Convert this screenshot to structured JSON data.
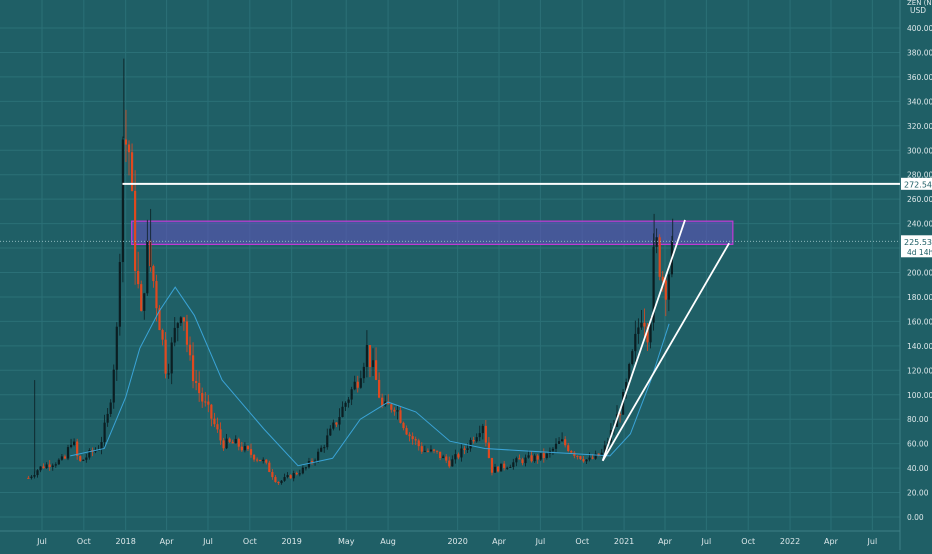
{
  "colors": {
    "background": "#1f5f66",
    "grid": "#2b7077",
    "up_candle": "#0b1e22",
    "down_candle": "#e0491f",
    "ma_line": "#3aa3d6",
    "level_line": "#ffffff",
    "zone_fill": "#5b54b4",
    "zone_border": "#c23ad6",
    "axis_text": "#dde8ea",
    "price_tag_bg": "#ffffff",
    "price_tag_text": "#1f5f66"
  },
  "axis": {
    "currency_top": "ZEN (N)",
    "currency": "USD",
    "price_tag": "225.53",
    "countdown_tag": "4d 14h",
    "level_tag": "272.54"
  },
  "chart_data": {
    "type": "candlestick",
    "title": "",
    "xlabel": "",
    "ylabel": "",
    "ylim": [
      -10,
      420
    ],
    "grid": true,
    "y_ticks": [
      "0.00",
      "20.00",
      "40.00",
      "60.00",
      "80.00",
      "100.00",
      "120.00",
      "140.00",
      "160.00",
      "180.00",
      "200.00",
      "220.00",
      "240.00",
      "260.00",
      "280.00",
      "300.00",
      "320.00",
      "340.00",
      "360.00",
      "380.00",
      "400.00"
    ],
    "x_ticks": [
      {
        "t": "2017-07",
        "label": "Jul"
      },
      {
        "t": "2017-10",
        "label": "Oct"
      },
      {
        "t": "2018-01",
        "label": "2018"
      },
      {
        "t": "2018-04",
        "label": "Apr"
      },
      {
        "t": "2018-07",
        "label": "Jul"
      },
      {
        "t": "2018-10",
        "label": "Oct"
      },
      {
        "t": "2019-01",
        "label": "2019"
      },
      {
        "t": "2019-05",
        "label": "May"
      },
      {
        "t": "2019-08",
        "label": "Aug"
      },
      {
        "t": "2020-01",
        "label": "2020"
      },
      {
        "t": "2020-04",
        "label": "Apr"
      },
      {
        "t": "2020-07",
        "label": "Jul"
      },
      {
        "t": "2020-10",
        "label": "Oct"
      },
      {
        "t": "2021-01",
        "label": "2021"
      },
      {
        "t": "2021-04",
        "label": "Apr"
      },
      {
        "t": "2021-07",
        "label": "Jul"
      },
      {
        "t": "2021-10",
        "label": "Oct"
      },
      {
        "t": "2022-01",
        "label": "2022"
      },
      {
        "t": "2022-04",
        "label": "Apr"
      },
      {
        "t": "2022-07",
        "label": "Jul"
      }
    ],
    "close_path": [
      {
        "t": "2017-06-01",
        "p": 32
      },
      {
        "t": "2017-06-25",
        "p": 40
      },
      {
        "t": "2017-07-20",
        "p": 44
      },
      {
        "t": "2017-08-20",
        "p": 47
      },
      {
        "t": "2017-09-05",
        "p": 65
      },
      {
        "t": "2017-09-20",
        "p": 44
      },
      {
        "t": "2017-10-15",
        "p": 52
      },
      {
        "t": "2017-11-05",
        "p": 58
      },
      {
        "t": "2017-11-25",
        "p": 85
      },
      {
        "t": "2017-12-15",
        "p": 160
      },
      {
        "t": "2017-12-25",
        "p": 312
      },
      {
        "t": "2018-01-08",
        "p": 302
      },
      {
        "t": "2018-01-20",
        "p": 218
      },
      {
        "t": "2018-02-05",
        "p": 158
      },
      {
        "t": "2018-02-15",
        "p": 220
      },
      {
        "t": "2018-03-01",
        "p": 198
      },
      {
        "t": "2018-03-15",
        "p": 165
      },
      {
        "t": "2018-04-01",
        "p": 118
      },
      {
        "t": "2018-04-20",
        "p": 152
      },
      {
        "t": "2018-05-05",
        "p": 178
      },
      {
        "t": "2018-05-20",
        "p": 128
      },
      {
        "t": "2018-06-15",
        "p": 98
      },
      {
        "t": "2018-07-10",
        "p": 80
      },
      {
        "t": "2018-08-01",
        "p": 60
      },
      {
        "t": "2018-09-01",
        "p": 60
      },
      {
        "t": "2018-10-01",
        "p": 52
      },
      {
        "t": "2018-11-01",
        "p": 45
      },
      {
        "t": "2018-12-01",
        "p": 28
      },
      {
        "t": "2019-01-01",
        "p": 34
      },
      {
        "t": "2019-02-01",
        "p": 40
      },
      {
        "t": "2019-03-01",
        "p": 52
      },
      {
        "t": "2019-04-01",
        "p": 72
      },
      {
        "t": "2019-05-01",
        "p": 95
      },
      {
        "t": "2019-05-25",
        "p": 112
      },
      {
        "t": "2019-06-15",
        "p": 138
      },
      {
        "t": "2019-07-05",
        "p": 112
      },
      {
        "t": "2019-07-20",
        "p": 88
      },
      {
        "t": "2019-08-15",
        "p": 92
      },
      {
        "t": "2019-09-15",
        "p": 68
      },
      {
        "t": "2019-10-15",
        "p": 55
      },
      {
        "t": "2019-11-15",
        "p": 52
      },
      {
        "t": "2019-12-15",
        "p": 44
      },
      {
        "t": "2020-01-15",
        "p": 55
      },
      {
        "t": "2020-02-10",
        "p": 68
      },
      {
        "t": "2020-02-25",
        "p": 78
      },
      {
        "t": "2020-03-15",
        "p": 38
      },
      {
        "t": "2020-04-15",
        "p": 42
      },
      {
        "t": "2020-05-15",
        "p": 46
      },
      {
        "t": "2020-06-15",
        "p": 48
      },
      {
        "t": "2020-07-15",
        "p": 50
      },
      {
        "t": "2020-08-15",
        "p": 62
      },
      {
        "t": "2020-09-15",
        "p": 52
      },
      {
        "t": "2020-10-15",
        "p": 46
      },
      {
        "t": "2020-11-15",
        "p": 52
      },
      {
        "t": "2020-12-10",
        "p": 75
      },
      {
        "t": "2021-01-01",
        "p": 98
      },
      {
        "t": "2021-01-20",
        "p": 132
      },
      {
        "t": "2021-02-10",
        "p": 172
      },
      {
        "t": "2021-02-25",
        "p": 148
      },
      {
        "t": "2021-03-10",
        "p": 228
      },
      {
        "t": "2021-03-20",
        "p": 208
      },
      {
        "t": "2021-04-01",
        "p": 188
      },
      {
        "t": "2021-04-15",
        "p": 212
      },
      {
        "t": "2021-04-22",
        "p": 225.53
      }
    ],
    "spikes": [
      {
        "t": "2017-12-28",
        "p": 375
      },
      {
        "t": "2018-02-25",
        "p": 252
      },
      {
        "t": "2017-06-15",
        "p": 112
      },
      {
        "t": "2021-03-08",
        "p": 248
      },
      {
        "t": "2021-04-18",
        "p": 244
      }
    ],
    "ma": [
      {
        "t": "2017-09-01",
        "p": 50
      },
      {
        "t": "2017-11-15",
        "p": 56
      },
      {
        "t": "2018-01-01",
        "p": 98
      },
      {
        "t": "2018-02-01",
        "p": 138
      },
      {
        "t": "2018-03-15",
        "p": 168
      },
      {
        "t": "2018-04-20",
        "p": 188
      },
      {
        "t": "2018-06-01",
        "p": 165
      },
      {
        "t": "2018-08-01",
        "p": 112
      },
      {
        "t": "2018-11-01",
        "p": 72
      },
      {
        "t": "2019-01-15",
        "p": 42
      },
      {
        "t": "2019-04-01",
        "p": 48
      },
      {
        "t": "2019-06-01",
        "p": 80
      },
      {
        "t": "2019-08-01",
        "p": 94
      },
      {
        "t": "2019-10-01",
        "p": 86
      },
      {
        "t": "2019-12-15",
        "p": 62
      },
      {
        "t": "2020-03-01",
        "p": 56
      },
      {
        "t": "2020-06-01",
        "p": 54
      },
      {
        "t": "2020-09-01",
        "p": 52
      },
      {
        "t": "2020-12-01",
        "p": 50
      },
      {
        "t": "2021-01-15",
        "p": 68
      },
      {
        "t": "2021-03-01",
        "p": 112
      },
      {
        "t": "2021-04-10",
        "p": 158
      }
    ],
    "horizontal_level": 272.54,
    "resistance_zone": {
      "t0": "2018-01-01",
      "t1": "2021-08-15",
      "p_low": 223,
      "p_high": 242
    },
    "trendlines": [
      {
        "t0": "2020-11-15",
        "p0": 46,
        "t1": "2021-05-15",
        "p1": 243
      },
      {
        "t0": "2020-11-15",
        "p0": 46,
        "t1": "2021-08-20",
        "p1": 224
      }
    ],
    "last_price": 225.53
  }
}
